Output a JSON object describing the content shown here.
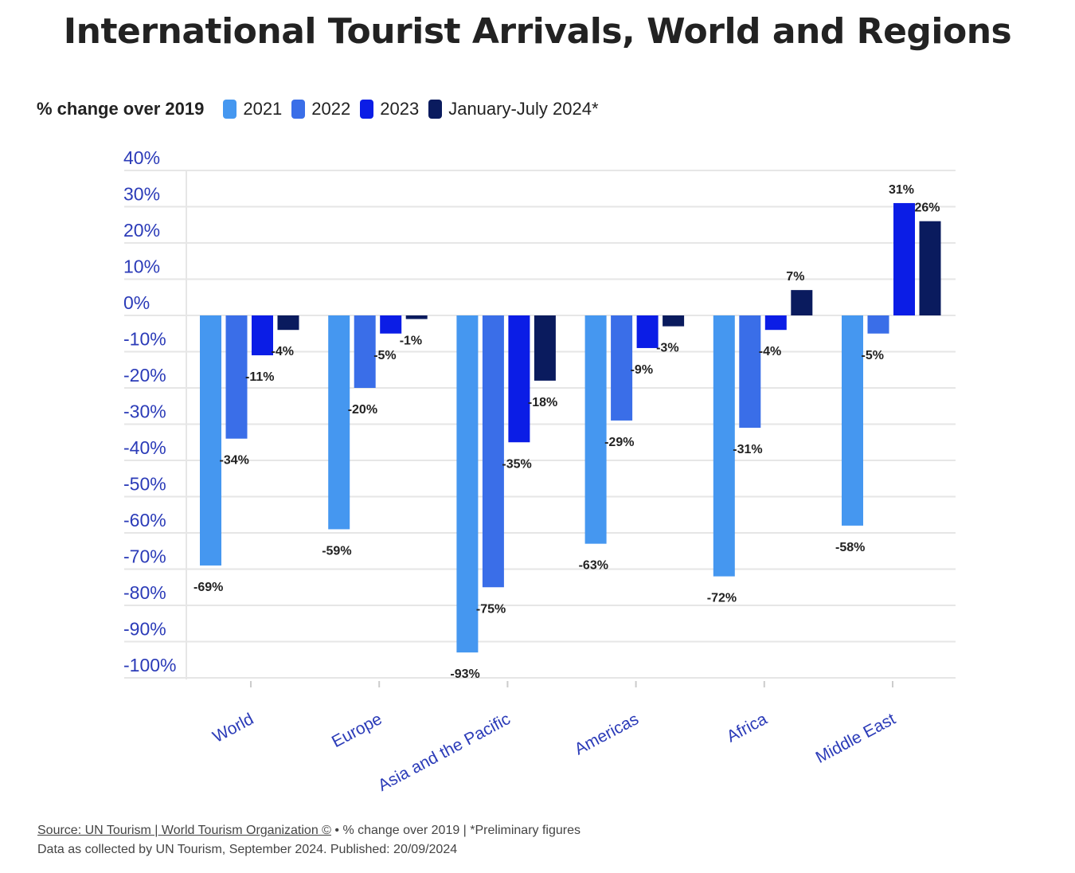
{
  "title": "International Tourist Arrivals, World and Regions",
  "legend": {
    "heading": "% change over 2019",
    "items": [
      {
        "label": "2021",
        "color": "#4597f0"
      },
      {
        "label": "2022",
        "color": "#3a6ee8"
      },
      {
        "label": "2023",
        "color": "#0b1de6"
      },
      {
        "label": "January-July 2024*",
        "color": "#0a1b5e"
      }
    ]
  },
  "chart_data": {
    "type": "bar",
    "categories": [
      "World",
      "Europe",
      "Asia and the Pacific",
      "Americas",
      "Africa",
      "Middle East"
    ],
    "series": [
      {
        "name": "2021",
        "color": "#4597f0",
        "values": [
          -69,
          -59,
          -93,
          -63,
          -72,
          -58
        ]
      },
      {
        "name": "2022",
        "color": "#3a6ee8",
        "values": [
          -34,
          -20,
          -75,
          -29,
          -31,
          -5
        ]
      },
      {
        "name": "2023",
        "color": "#0b1de6",
        "values": [
          -11,
          -5,
          -35,
          -9,
          -4,
          31
        ]
      },
      {
        "name": "January-July 2024*",
        "color": "#0a1b5e",
        "values": [
          -4,
          -1,
          -18,
          -3,
          7,
          26
        ]
      }
    ],
    "data_labels": [
      [
        "-69%",
        "-34%",
        "-11%",
        "-4%"
      ],
      [
        "-59%",
        "-20%",
        "-5%",
        "-1%"
      ],
      [
        "-93%",
        "-75%",
        "-35%",
        "-18%"
      ],
      [
        "-63%",
        "-29%",
        "-9%",
        "-3%"
      ],
      [
        "-72%",
        "-31%",
        "-4%",
        "7%"
      ],
      [
        "-58%",
        "-5%",
        "31%",
        "26%"
      ]
    ],
    "y_ticks": [
      40,
      30,
      20,
      10,
      0,
      -10,
      -20,
      -30,
      -40,
      -50,
      -60,
      -70,
      -80,
      -90,
      -100
    ],
    "y_tick_labels": [
      "40%",
      "30%",
      "20%",
      "10%",
      "0%",
      "-10%",
      "-20%",
      "-30%",
      "-40%",
      "-50%",
      "-60%",
      "-70%",
      "-80%",
      "-90%",
      "-100%"
    ],
    "ylim": [
      -100,
      40
    ],
    "grid": true,
    "legend_position": "top-left"
  },
  "footer": {
    "source_link": "Source: UN Tourism | World Tourism Organization ©",
    "source_rest": " • % change over 2019 | *Preliminary figures",
    "line2": "Data as collected by UN Tourism, September 2024. Published: 20/09/2024"
  }
}
